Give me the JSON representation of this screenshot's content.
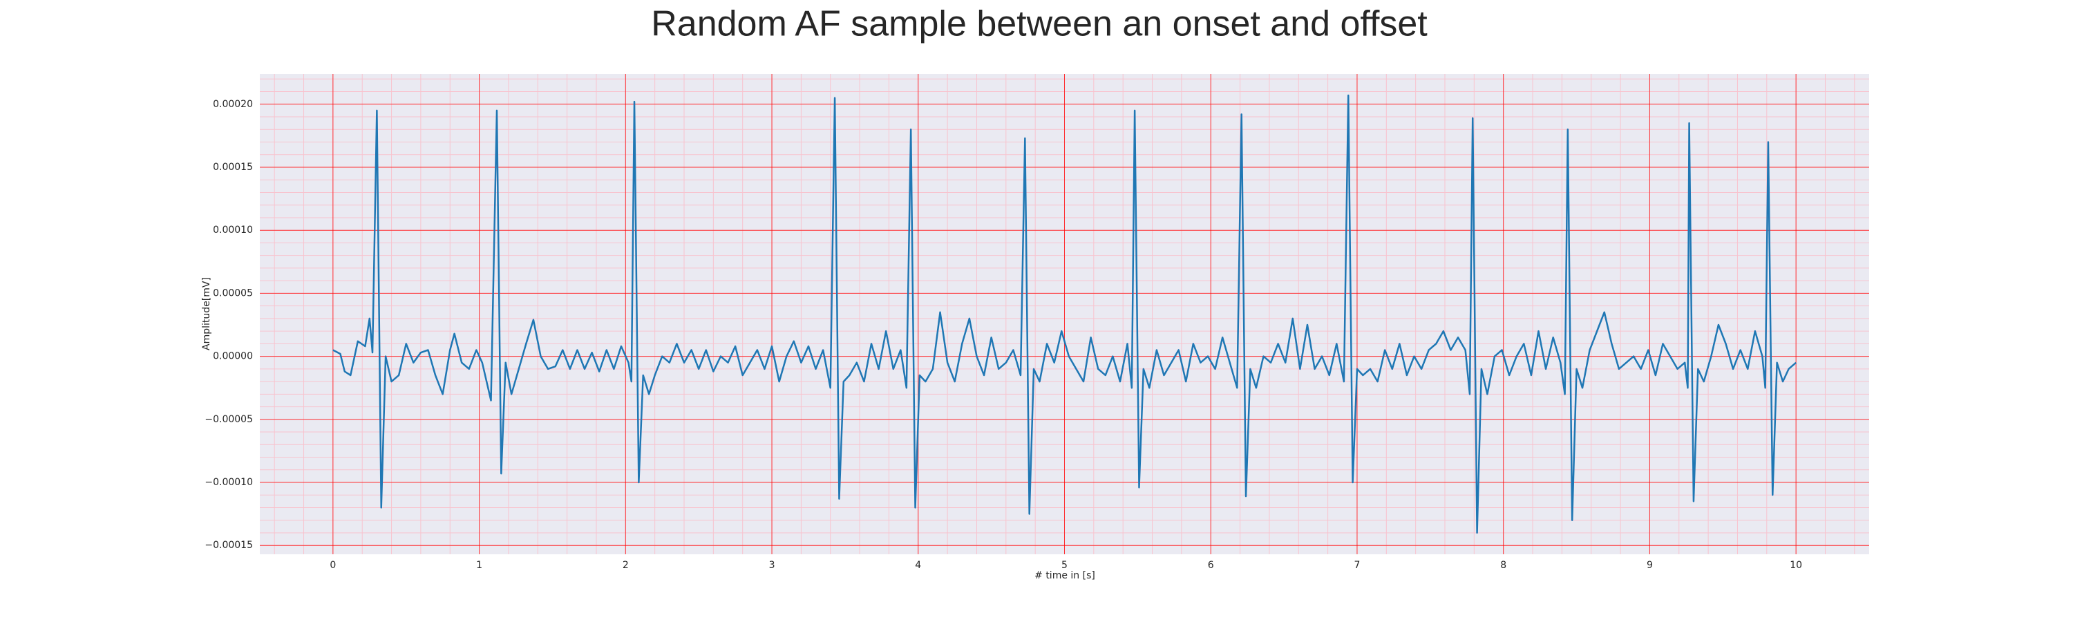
{
  "chart_data": {
    "type": "line",
    "title": "Random AF sample between an onset and offset",
    "x_label": "# time in [s]",
    "y_label": "Amplitude[mV]",
    "xlim": [
      -0.5,
      10.5
    ],
    "ylim": [
      -0.000157,
      0.000224
    ],
    "xticks": [
      0,
      1,
      2,
      3,
      4,
      5,
      6,
      7,
      8,
      9,
      10
    ],
    "yticks": [
      {
        "value": -0.00015,
        "label": "−0.00015"
      },
      {
        "value": -0.0001,
        "label": "−0.00010"
      },
      {
        "value": -5e-05,
        "label": "−0.00005"
      },
      {
        "value": 0,
        "label": "0.00000"
      },
      {
        "value": 5e-05,
        "label": "0.00005"
      },
      {
        "value": 0.0001,
        "label": "0.00010"
      },
      {
        "value": 0.00015,
        "label": "0.00015"
      },
      {
        "value": 0.0002,
        "label": "0.00020"
      }
    ],
    "grid": true,
    "grid_color": "#ff0000",
    "minor_grid": {
      "x": 5,
      "y": 5,
      "color": "#ffb3c0"
    },
    "background": "#eaeaf2",
    "x": [
      0.0,
      0.05,
      0.08,
      0.12,
      0.17,
      0.22,
      0.25,
      0.27,
      0.3,
      0.33,
      0.36,
      0.4,
      0.45,
      0.5,
      0.55,
      0.6,
      0.65,
      0.7,
      0.75,
      0.8,
      0.83,
      0.88,
      0.93,
      0.98,
      1.02,
      1.05,
      1.08,
      1.12,
      1.15,
      1.18,
      1.22,
      1.27,
      1.32,
      1.37,
      1.42,
      1.47,
      1.52,
      1.57,
      1.62,
      1.67,
      1.72,
      1.77,
      1.82,
      1.87,
      1.92,
      1.97,
      2.02,
      2.04,
      2.06,
      2.09,
      2.12,
      2.16,
      2.2,
      2.25,
      2.3,
      2.35,
      2.4,
      2.45,
      2.5,
      2.55,
      2.6,
      2.65,
      2.7,
      2.75,
      2.8,
      2.85,
      2.9,
      2.95,
      3.0,
      3.05,
      3.1,
      3.15,
      3.2,
      3.25,
      3.3,
      3.35,
      3.4,
      3.43,
      3.46,
      3.49,
      3.53,
      3.58,
      3.63,
      3.68,
      3.73,
      3.78,
      3.83,
      3.88,
      3.92,
      3.95,
      3.98,
      4.01,
      4.05,
      4.1,
      4.15,
      4.2,
      4.25,
      4.3,
      4.35,
      4.4,
      4.45,
      4.5,
      4.55,
      4.6,
      4.65,
      4.7,
      4.73,
      4.76,
      4.79,
      4.83,
      4.88,
      4.93,
      4.98,
      5.03,
      5.08,
      5.13,
      5.18,
      5.23,
      5.28,
      5.33,
      5.38,
      5.43,
      5.46,
      5.48,
      5.51,
      5.54,
      5.58,
      5.63,
      5.68,
      5.73,
      5.78,
      5.83,
      5.88,
      5.93,
      5.98,
      6.03,
      6.08,
      6.13,
      6.18,
      6.21,
      6.24,
      6.27,
      6.31,
      6.36,
      6.41,
      6.46,
      6.51,
      6.56,
      6.61,
      6.66,
      6.71,
      6.76,
      6.81,
      6.86,
      6.91,
      6.94,
      6.97,
      7.0,
      7.04,
      7.09,
      7.14,
      7.19,
      7.24,
      7.29,
      7.34,
      7.39,
      7.44,
      7.49,
      7.54,
      7.59,
      7.64,
      7.69,
      7.74,
      7.77,
      7.79,
      7.82,
      7.85,
      7.89,
      7.94,
      7.99,
      8.04,
      8.09,
      8.14,
      8.19,
      8.24,
      8.29,
      8.34,
      8.39,
      8.42,
      8.44,
      8.47,
      8.5,
      8.54,
      8.59,
      8.64,
      8.69,
      8.74,
      8.79,
      8.84,
      8.89,
      8.94,
      8.99,
      9.04,
      9.09,
      9.14,
      9.19,
      9.24,
      9.26,
      9.27,
      9.3,
      9.33,
      9.37,
      9.42,
      9.47,
      9.52,
      9.57,
      9.62,
      9.67,
      9.72,
      9.77,
      9.79,
      9.81,
      9.84,
      9.87,
      9.91,
      9.95,
      10.0
    ],
    "series": [
      {
        "color": "#1f77b4",
        "values": [
          5e-06,
          2e-06,
          -1.2e-05,
          -1.5e-05,
          1.2e-05,
          8e-06,
          3e-05,
          3e-06,
          0.000195,
          -0.00012,
          0.0,
          -2e-05,
          -1.5e-05,
          1e-05,
          -5e-06,
          3e-06,
          5e-06,
          -1.5e-05,
          -3e-05,
          5e-06,
          1.8e-05,
          -5e-06,
          -1e-05,
          5e-06,
          -5e-06,
          -2e-05,
          -3.5e-05,
          0.000195,
          -9.3e-05,
          -5e-06,
          -3e-05,
          -1e-05,
          1e-05,
          2.9e-05,
          0.0,
          -1e-05,
          -8e-06,
          5e-06,
          -1e-05,
          5e-06,
          -1e-05,
          3e-06,
          -1.2e-05,
          5e-06,
          -1e-05,
          8e-06,
          -5e-06,
          -2e-05,
          0.000202,
          -0.0001,
          -1.5e-05,
          -3e-05,
          -1.5e-05,
          0.0,
          -5e-06,
          1e-05,
          -5e-06,
          5e-06,
          -1e-05,
          5e-06,
          -1.2e-05,
          0.0,
          -5e-06,
          8e-06,
          -1.5e-05,
          -5e-06,
          5e-06,
          -1e-05,
          8e-06,
          -2e-05,
          0.0,
          1.2e-05,
          -5e-06,
          8e-06,
          -1e-05,
          5e-06,
          -2.5e-05,
          0.000205,
          -0.000113,
          -2e-05,
          -1.5e-05,
          -5e-06,
          -2e-05,
          1e-05,
          -1e-05,
          2e-05,
          -1e-05,
          5e-06,
          -2.5e-05,
          0.00018,
          -0.00012,
          -1.5e-05,
          -2e-05,
          -1e-05,
          3.5e-05,
          -5e-06,
          -2e-05,
          1e-05,
          3e-05,
          0.0,
          -1.5e-05,
          1.5e-05,
          -1e-05,
          -5e-06,
          5e-06,
          -1.5e-05,
          0.000173,
          -0.000125,
          -1e-05,
          -2e-05,
          1e-05,
          -5e-06,
          2e-05,
          0.0,
          -1e-05,
          -2e-05,
          1.5e-05,
          -1e-05,
          -1.5e-05,
          0.0,
          -2e-05,
          1e-05,
          -2.5e-05,
          0.000195,
          -0.000104,
          -1e-05,
          -2.5e-05,
          5e-06,
          -1.5e-05,
          -5e-06,
          5e-06,
          -2e-05,
          1e-05,
          -5e-06,
          0.0,
          -1e-05,
          1.5e-05,
          -5e-06,
          -2.5e-05,
          0.000192,
          -0.000111,
          -1e-05,
          -2.5e-05,
          0.0,
          -5e-06,
          1e-05,
          -5e-06,
          3e-05,
          -1e-05,
          2.5e-05,
          -1e-05,
          0.0,
          -1.5e-05,
          1e-05,
          -2e-05,
          0.000207,
          -0.0001,
          -1e-05,
          -1.5e-05,
          -1e-05,
          -2e-05,
          5e-06,
          -1e-05,
          1e-05,
          -1.5e-05,
          0.0,
          -1e-05,
          5e-06,
          1e-05,
          2e-05,
          5e-06,
          1.5e-05,
          5e-06,
          -3e-05,
          0.000189,
          -0.00014,
          -1e-05,
          -3e-05,
          0.0,
          5e-06,
          -1.5e-05,
          0.0,
          1e-05,
          -1.5e-05,
          2e-05,
          -1e-05,
          1.5e-05,
          -5e-06,
          -3e-05,
          0.00018,
          -0.00013,
          -1e-05,
          -2.5e-05,
          5e-06,
          2e-05,
          3.5e-05,
          1e-05,
          -1e-05,
          -5e-06,
          0.0,
          -1e-05,
          5e-06,
          -1.5e-05,
          1e-05,
          0.0,
          -1e-05,
          -5e-06,
          -2.5e-05,
          0.000185,
          -0.000115,
          -1e-05,
          -2e-05,
          0.0,
          2.5e-05,
          1e-05,
          -1e-05,
          5e-06,
          -1e-05,
          2e-05,
          0.0,
          -2.5e-05,
          0.00017,
          -0.00011,
          -5e-06,
          -2e-05,
          -1e-05,
          -5e-06
        ]
      }
    ]
  }
}
